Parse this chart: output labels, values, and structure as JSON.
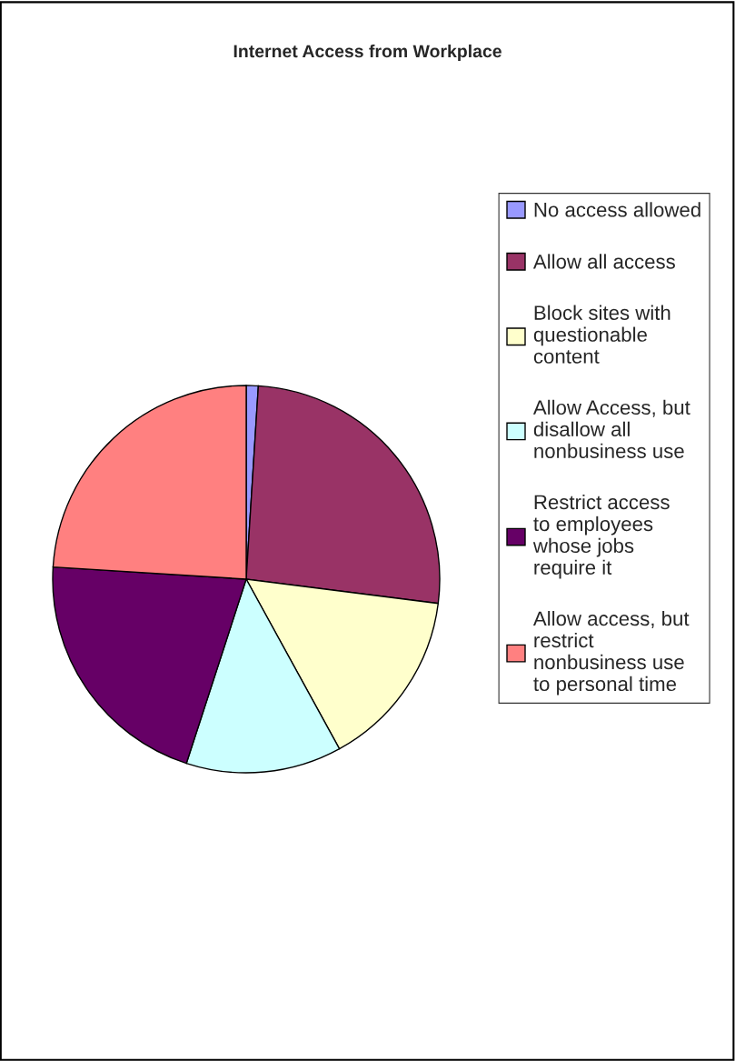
{
  "chart_data": {
    "type": "pie",
    "title": "Internet Access from Workplace",
    "categories": [
      "No access allowed",
      "Allow all access",
      "Block sites with questionable content",
      "Allow Access, but disallow all nonbusiness use",
      "Restrict access to employees whose jobs require it",
      "Allow access, but restrict nonbusiness use to personal time"
    ],
    "values": [
      1,
      26,
      15,
      13,
      21,
      24
    ],
    "colors": [
      "#9999ff",
      "#993366",
      "#ffffcc",
      "#ccffff",
      "#660066",
      "#ff8080"
    ],
    "legend": "right"
  }
}
